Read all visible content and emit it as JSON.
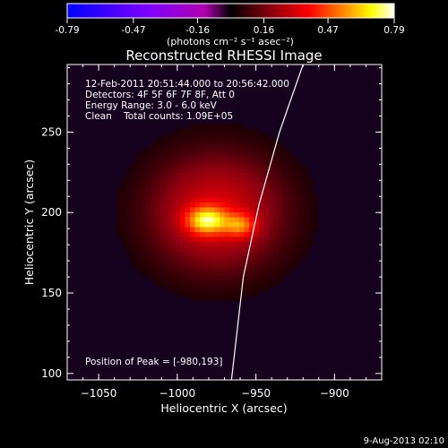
{
  "chart_data": {
    "type": "heatmap",
    "title": "Reconstructed RHESSI Image",
    "xlabel": "Heliocentric X (arcsec)",
    "ylabel": "Heliocentric Y (arcsec)",
    "xlim": [
      -1070,
      -870
    ],
    "ylim": [
      96,
      292
    ],
    "x_ticks": [
      -1050,
      -1000,
      -950,
      -900
    ],
    "y_ticks": [
      100,
      150,
      200,
      250
    ],
    "colorbar": {
      "ticks": [
        -0.79,
        -0.47,
        -0.16,
        0.16,
        0.47,
        0.79
      ],
      "unit_label": "(photons cm⁻² s⁻¹ asec⁻²)",
      "colors": {
        "negative": [
          "#0000ff",
          "#7f00ff",
          "#c000c0",
          "#000000"
        ],
        "positive": [
          "#000000",
          "#8a0010",
          "#ff0000",
          "#ff8000",
          "#ffff00",
          "#ffffff"
        ]
      }
    },
    "annotations": {
      "time_range": "12-Feb-2011 20:51:44.000 to 20:56:42.000",
      "detectors": "Detectors: 4F 5F 6F 7F 8F, Att 0",
      "energy": "Energy Range: 3.0 - 6.0 keV",
      "method": "Clean    Total counts: 1.09E+05",
      "peak": "Position of Peak = [-980,193]"
    },
    "sources": [
      {
        "x": -975,
        "y": 200,
        "sigma_x": 28,
        "sigma_y": 24,
        "amplitude": 0.26
      },
      {
        "x": -981,
        "y": 195,
        "sigma_x": 9,
        "sigma_y": 6,
        "amplitude": 0.5
      },
      {
        "x": -960,
        "y": 192,
        "sigma_x": 7,
        "sigma_y": 5,
        "amplitude": 0.32
      }
    ],
    "limb_curve": [
      {
        "x": -966,
        "y": 92
      },
      {
        "x": -958,
        "y": 160
      },
      {
        "x": -948,
        "y": 205
      },
      {
        "x": -935,
        "y": 250
      },
      {
        "x": -920,
        "y": 292
      }
    ],
    "timestamp": "9-Aug-2013 02:10"
  }
}
